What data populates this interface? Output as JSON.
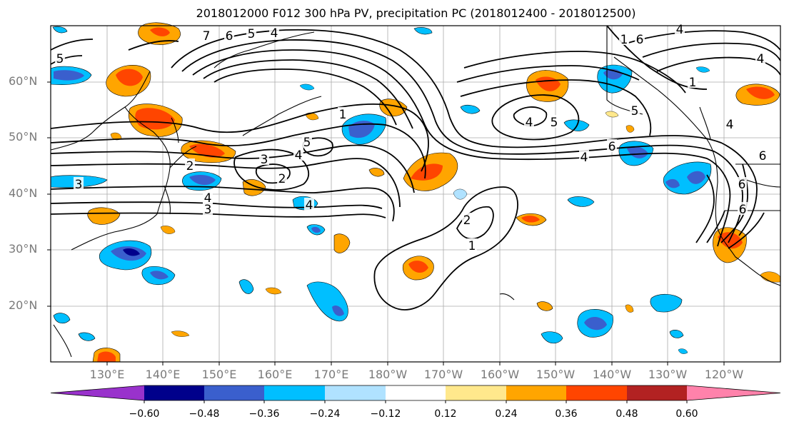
{
  "title": "2018012000 F012 300 hPa PV, precipitation PC (2018012400 - 2018012500)",
  "lat_labels": [
    "60°N",
    "50°N",
    "40°N",
    "30°N",
    "20°N"
  ],
  "lon_labels": [
    "130°E",
    "140°E",
    "150°E",
    "160°E",
    "170°E",
    "180°W",
    "170°W",
    "160°W",
    "150°W",
    "140°W",
    "130°W",
    "120°W"
  ],
  "colorbar": {
    "tick_labels": [
      "−0.60",
      "−0.48",
      "−0.36",
      "−0.24",
      "−0.12",
      "0.12",
      "0.24",
      "0.36",
      "0.48",
      "0.60"
    ],
    "colors": [
      "#9932cc",
      "#00008b",
      "#3a5fcd",
      "#00bfff",
      "#b0e2ff",
      "#ffffff",
      "#ffe88c",
      "#ffa500",
      "#ff4500",
      "#b22222",
      "#ff82ab"
    ]
  },
  "contour_labels": [
    {
      "text": "7"
    },
    {
      "text": "6"
    },
    {
      "text": "5"
    },
    {
      "text": "4"
    },
    {
      "text": "5"
    },
    {
      "text": "1"
    },
    {
      "text": "5"
    },
    {
      "text": "4"
    },
    {
      "text": "3"
    },
    {
      "text": "2"
    },
    {
      "text": "2"
    },
    {
      "text": "3"
    },
    {
      "text": "4"
    },
    {
      "text": "3"
    },
    {
      "text": "4"
    },
    {
      "text": "2"
    },
    {
      "text": "1"
    },
    {
      "text": "4"
    },
    {
      "text": "5"
    },
    {
      "text": "4"
    },
    {
      "text": "6"
    },
    {
      "text": "5"
    },
    {
      "text": "1"
    },
    {
      "text": "6"
    },
    {
      "text": "4"
    },
    {
      "text": "4"
    },
    {
      "text": "1"
    },
    {
      "text": "4"
    },
    {
      "text": "6"
    },
    {
      "text": "6"
    },
    {
      "text": "6"
    }
  ]
}
